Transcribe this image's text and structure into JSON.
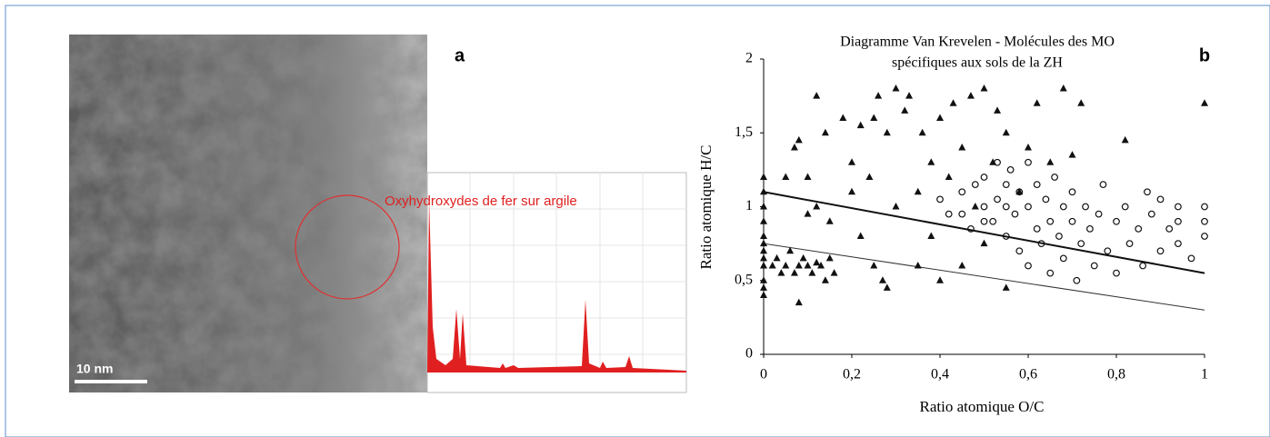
{
  "panel_a": {
    "letter": "a",
    "scale_bar": "10 nm",
    "annotation": "Oxyhydroxydes de fer sur argile"
  },
  "chart_data": {
    "type": "scatter",
    "letter": "b",
    "title": [
      "Diagramme Van Krevelen - Molécules des MO",
      "spécifiques aux sols de la ZH"
    ],
    "x_label": "Ratio atomique O/C",
    "y_label": "Ratio atomique H/C",
    "xlim": [
      0,
      1
    ],
    "ylim": [
      0,
      2
    ],
    "xticks": [
      0,
      {
        "value": 0.2,
        "label": "0,2"
      },
      {
        "value": 0.4,
        "label": "0,4"
      },
      {
        "value": 0.6,
        "label": "0,6"
      },
      {
        "value": 0.8,
        "label": "0,8"
      },
      1
    ],
    "yticks": [
      0,
      {
        "value": 0.5,
        "label": "0,5"
      },
      1,
      {
        "value": 1.5,
        "label": "1,5"
      },
      2
    ],
    "series": [
      {
        "marker": "triangle",
        "color": "#111111",
        "x": [
          0,
          0,
          0,
          0,
          0,
          0,
          0,
          0,
          0,
          0,
          0,
          0,
          0.02,
          0.03,
          0.04,
          0.05,
          0.06,
          0.07,
          0.08,
          0.08,
          0.09,
          0.1,
          0.11,
          0.12,
          0.13,
          0.14,
          0.15,
          0.16,
          0.05,
          0.07,
          0.08,
          0.1,
          0.1,
          0.12,
          0.12,
          0.14,
          0.15,
          0.18,
          0.2,
          0.2,
          0.22,
          0.22,
          0.24,
          0.25,
          0.25,
          0.26,
          0.27,
          0.28,
          0.28,
          0.3,
          0.3,
          0.32,
          0.33,
          0.35,
          0.35,
          0.36,
          0.38,
          0.38,
          0.4,
          0.4,
          0.42,
          0.43,
          0.45,
          0.45,
          0.47,
          0.48,
          0.5,
          0.5,
          0.52,
          0.53,
          0.55,
          0.55,
          0.58,
          0.6,
          0.62,
          0.65,
          0.68,
          0.7,
          0.72,
          0.82,
          1
        ],
        "y": [
          1.2,
          1.1,
          1.0,
          0.9,
          0.8,
          0.7,
          0.6,
          0.5,
          0.45,
          0.4,
          0.65,
          0.75,
          0.6,
          0.65,
          0.55,
          0.6,
          0.7,
          0.55,
          0.35,
          0.6,
          0.65,
          0.6,
          0.55,
          0.62,
          0.6,
          0.5,
          0.65,
          0.55,
          1.2,
          1.4,
          1.45,
          1.2,
          0.95,
          1.75,
          1.0,
          1.5,
          0.9,
          1.6,
          1.3,
          1.1,
          1.55,
          0.8,
          1.2,
          0.6,
          1.6,
          1.75,
          0.5,
          0.45,
          1.5,
          1.8,
          1.0,
          1.65,
          1.75,
          1.1,
          0.6,
          1.5,
          1.3,
          0.8,
          1.6,
          0.5,
          1.2,
          1.7,
          0.6,
          1.4,
          1.75,
          1.0,
          1.8,
          0.75,
          1.3,
          1.65,
          0.45,
          1.5,
          1.1,
          1.4,
          1.7,
          1.3,
          1.8,
          1.35,
          1.7,
          1.45,
          1.7
        ]
      },
      {
        "marker": "circle",
        "color": "#111111",
        "x": [
          0.4,
          0.42,
          0.45,
          0.47,
          0.5,
          0.5,
          0.52,
          0.53,
          0.55,
          0.55,
          0.56,
          0.57,
          0.58,
          0.58,
          0.6,
          0.6,
          0.6,
          0.62,
          0.62,
          0.63,
          0.64,
          0.65,
          0.65,
          0.66,
          0.67,
          0.68,
          0.68,
          0.7,
          0.7,
          0.71,
          0.72,
          0.73,
          0.74,
          0.75,
          0.76,
          0.77,
          0.78,
          0.8,
          0.8,
          0.82,
          0.83,
          0.85,
          0.86,
          0.87,
          0.88,
          0.9,
          0.9,
          0.92,
          0.94,
          0.94,
          0.94,
          1,
          1,
          1,
          0.97,
          0.55,
          0.5,
          0.45,
          0.48,
          0.53
        ],
        "y": [
          1.05,
          0.95,
          1.1,
          0.85,
          1.0,
          1.2,
          0.9,
          1.05,
          0.8,
          1.15,
          1.25,
          0.95,
          0.7,
          1.1,
          1.0,
          0.6,
          1.3,
          0.85,
          1.15,
          0.75,
          1.05,
          0.9,
          0.55,
          1.2,
          0.8,
          1.0,
          0.65,
          0.9,
          1.1,
          0.5,
          0.75,
          1.0,
          0.85,
          0.6,
          0.95,
          1.15,
          0.7,
          0.9,
          0.55,
          1.0,
          0.75,
          0.85,
          0.6,
          1.1,
          0.95,
          0.7,
          1.05,
          0.85,
          0.75,
          1.0,
          0.9,
          1.0,
          0.9,
          0.8,
          0.65,
          1.0,
          0.9,
          0.95,
          1.15,
          1.3
        ]
      }
    ],
    "lines": [
      {
        "color": "#111111",
        "width": 2,
        "x": [
          0,
          1
        ],
        "y": [
          1.1,
          0.55
        ]
      },
      {
        "color": "#333333",
        "width": 1,
        "x": [
          0,
          1
        ],
        "y": [
          0.75,
          0.3
        ]
      }
    ]
  }
}
